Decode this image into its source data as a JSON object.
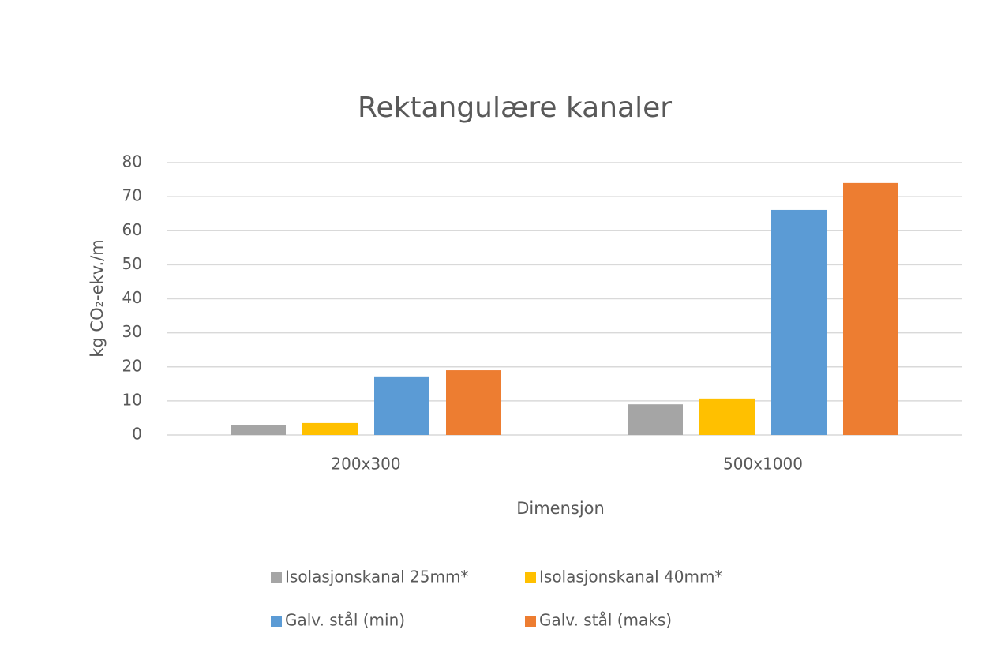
{
  "chart_data": {
    "type": "bar",
    "title": "Rektangulære kanaler",
    "x_label": "Dimensjon",
    "y_label": "kg CO₂-ekv./m",
    "categories": [
      "200x300",
      "500x1000"
    ],
    "series": [
      {
        "name": "Isolasjonskanal 25mm*",
        "color": "#a5a5a5",
        "values": [
          3.0,
          9.0
        ]
      },
      {
        "name": "Isolasjonskanal 40mm*",
        "color": "#ffc000",
        "values": [
          3.5,
          10.7
        ]
      },
      {
        "name": "Galv. stål (min)",
        "color": "#5b9bd5",
        "values": [
          17.2,
          66.1
        ]
      },
      {
        "name": "Galv. stål (maks)",
        "color": "#ed7d31",
        "values": [
          19.0,
          74.0
        ]
      }
    ],
    "ylim": [
      0,
      80
    ],
    "yticks": [
      0,
      10,
      20,
      30,
      40,
      50,
      60,
      70,
      80
    ],
    "grid": true,
    "legend": "bottom"
  }
}
